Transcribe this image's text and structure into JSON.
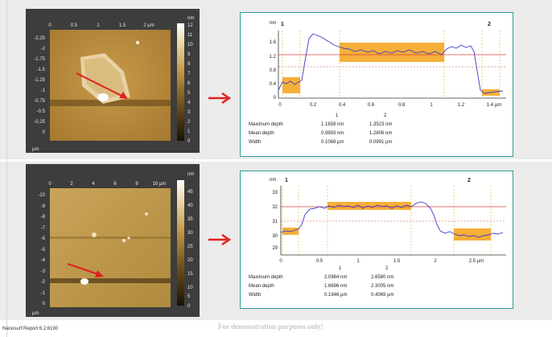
{
  "report": {
    "footer": "Nanosurf Report 6.2.6190",
    "watermark": "For demonstration purposes only!"
  },
  "colors": {
    "panel_bg": "#3d3d3d",
    "profile_border": "#2e9a93",
    "arrow": "#e02020",
    "marker": "#f5a623",
    "curve": "#3c3cc8",
    "guide_red": "#d04040"
  },
  "images": [
    {
      "x_ticks": [
        "0",
        "0.5",
        "1",
        "1.5",
        "2 µm"
      ],
      "y_ticks": [
        "-2.25",
        "-2",
        "-1.75",
        "-1.5",
        "-1.25",
        "-1",
        "-0.75",
        "-0.5",
        "-0.25",
        "0"
      ],
      "y_unit": "µm",
      "colorbar_unit": "nm",
      "colorbar_ticks": [
        "12",
        "11",
        "10",
        "9",
        "8",
        "7",
        "6",
        "5",
        "4",
        "3",
        "2",
        "1",
        "0"
      ]
    },
    {
      "x_ticks": [
        "0",
        "2",
        "4",
        "6",
        "8",
        "10 µm"
      ],
      "y_ticks": [
        "-10",
        "-9",
        "-8",
        "-7",
        "-6",
        "-5",
        "-4",
        "-3",
        "-2",
        "-1",
        "0"
      ],
      "y_unit": "µm",
      "colorbar_unit": "nm",
      "colorbar_ticks": [
        "45",
        "40",
        "35",
        "30",
        "25",
        "20",
        "15",
        "10",
        "5",
        "0"
      ]
    }
  ],
  "profiles": [
    {
      "y_unit": "nm",
      "x_unit": "µm",
      "marker_labels": [
        "1",
        "2"
      ],
      "y_ticks": [
        "1.6",
        "1.2",
        "0.8",
        "0.4",
        "0"
      ],
      "x_ticks": [
        "0",
        "0.2",
        "0.4",
        "0.6",
        "0.8",
        "1",
        "1.2",
        "1.4 µm"
      ],
      "table": {
        "columns": [
          "1",
          "2"
        ],
        "rows": [
          {
            "label": "Maximum depth",
            "v1": "1.1658 nm",
            "v2": "1.3523 nm"
          },
          {
            "label": "Mean depth",
            "v1": "0.9693 nm",
            "v2": "1.2806 nm"
          },
          {
            "label": "Width",
            "v1": "0.1068 µm",
            "v2": "0.0991 µm"
          }
        ]
      }
    },
    {
      "y_unit": "nm",
      "x_unit": "µm",
      "marker_labels": [
        "1",
        "2"
      ],
      "y_ticks": [
        "33",
        "32",
        "31",
        "30",
        "29"
      ],
      "x_ticks": [
        "0",
        "0.5",
        "1",
        "1.5",
        "2",
        "2.5 µm"
      ],
      "table": {
        "columns": [
          "1",
          "2"
        ],
        "rows": [
          {
            "label": "Maximum depth",
            "v1": "2.0964 nm",
            "v2": "2.6580 nm"
          },
          {
            "label": "Mean depth",
            "v1": "1.6696 nm",
            "v2": "2.3005 nm"
          },
          {
            "label": "Width",
            "v1": "0.1946 µm",
            "v2": "0.4069 µm"
          }
        ]
      }
    }
  ]
}
